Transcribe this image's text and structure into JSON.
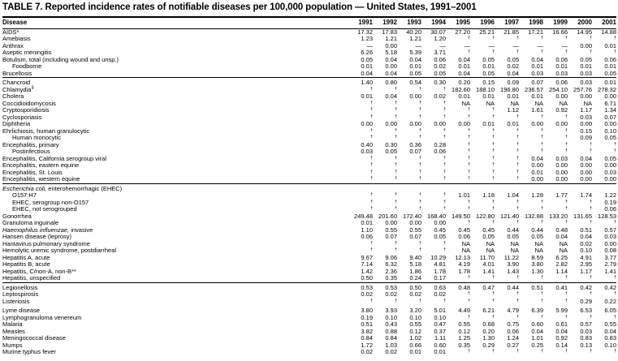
{
  "title": "TABLE 7. Reported incidence rates of notifiable diseases per 100,000 population — United States, 1991–2001",
  "columns": [
    "Disease",
    "1991",
    "1992",
    "1993",
    "1994",
    "1995",
    "1996",
    "1997",
    "1998",
    "1999",
    "2000",
    "2001"
  ],
  "sections": [
    {
      "rows": [
        {
          "name": "AIDS*",
          "values": [
            "17.32",
            "17.83",
            "40.20",
            "30.07",
            "27.20",
            "25.21",
            "21.85",
            "17.21",
            "16.66",
            "14.95",
            "14.88"
          ]
        },
        {
          "name": "Amebiasis",
          "values": [
            "1.23",
            "1.21",
            "1.21",
            "1.20",
            "†",
            "†",
            "†",
            "†",
            "†",
            "†",
            "†"
          ]
        },
        {
          "name": "Anthrax",
          "values": [
            "—",
            "0.00",
            "—",
            "—",
            "—",
            "—",
            "—",
            "—",
            "—",
            "0.00",
            "0.01"
          ]
        },
        {
          "name": "Aseptic meningitis",
          "values": [
            "6.26",
            "5.18",
            "5.39",
            "3.71",
            "†",
            "†",
            "†",
            "†",
            "†",
            "†",
            "†"
          ]
        },
        {
          "name": "Botulism, total (including wound and unsp.)",
          "values": [
            "0.05",
            "0.04",
            "0.04",
            "0.06",
            "0.04",
            "0.05",
            "0.05",
            "0.04",
            "0.06",
            "0.05",
            "0.06"
          ]
        },
        {
          "name": "Foodborne",
          "indent": true,
          "values": [
            "0.01",
            "0.00",
            "0.01",
            "0.02",
            "0.01",
            "0.01",
            "0.02",
            "0.01",
            "0.01",
            "0.01",
            "0.01"
          ]
        },
        {
          "name": "Brucellosis",
          "values": [
            "0.04",
            "0.04",
            "0.05",
            "0.05",
            "0.04",
            "0.05",
            "0.04",
            "0.03",
            "0.03",
            "0.03",
            "0.05"
          ]
        }
      ]
    },
    {
      "rows": [
        {
          "name": "Chancroid",
          "values": [
            "1.40",
            "0.80",
            "0.54",
            "0.30",
            "0.20",
            "0.15",
            "0.09",
            "0.07",
            "0.06",
            "0.03",
            "0.01"
          ]
        },
        {
          "name": "Chlamydia",
          "name_sup": "§",
          "values": [
            "†",
            "†",
            "†",
            "†",
            "182.60",
            "188.10",
            "196.80",
            "236.57",
            "254.10",
            "257.76",
            "278.32"
          ]
        },
        {
          "name": "Cholera",
          "values": [
            "0.01",
            "0.04",
            "0.00",
            "0.02",
            "0.01",
            "0.01",
            "0.01",
            "0.01",
            "0.00",
            "0.00",
            "0.00"
          ]
        },
        {
          "name": "Coccidioidomycosis",
          "values": [
            "†",
            "†",
            "†",
            "†",
            "NA",
            "NA",
            "NA",
            "NA",
            "NA",
            "NA",
            "6.71"
          ]
        },
        {
          "name": "Cryptosporidiosis",
          "values": [
            "†",
            "†",
            "†",
            "†",
            "†",
            "†",
            "1.12",
            "1.61",
            "0.92",
            "1.17",
            "1.34"
          ]
        },
        {
          "name": "Cyclosporiasis",
          "values": [
            "†",
            "†",
            "†",
            "†",
            "†",
            "†",
            "†",
            "†",
            "†",
            "0.03",
            "0.07"
          ]
        },
        {
          "name": "Diphtheria",
          "values": [
            "0.00",
            "0.00",
            "0.00",
            "0.00",
            "0.00",
            "0.01",
            "0.01",
            "0.00",
            "0.00",
            "0.00",
            "0.00"
          ]
        },
        {
          "name": "Ehrlichiosis, human granulocytic",
          "values": [
            "†",
            "†",
            "†",
            "†",
            "†",
            "†",
            "†",
            "†",
            "†",
            "0.15",
            "0.10"
          ]
        },
        {
          "name": "Human monocytic",
          "indent": true,
          "values": [
            "†",
            "†",
            "†",
            "†",
            "†",
            "†",
            "†",
            "†",
            "†",
            "0.09",
            "0.05"
          ]
        },
        {
          "name": "Encephalitis, primary",
          "values": [
            "0.40",
            "0.30",
            "0.36",
            "0.28",
            "†",
            "†",
            "†",
            "†",
            "†",
            "†",
            "†"
          ]
        },
        {
          "name": "Postinfectious",
          "indent": true,
          "values": [
            "0.03",
            "0.05",
            "0.07",
            "0.06",
            "†",
            "†",
            "†",
            "†",
            "†",
            "†",
            "†"
          ]
        },
        {
          "name": "Encephalitis, California serogroup viral",
          "values": [
            "†",
            "†",
            "†",
            "†",
            "†",
            "†",
            "†",
            "0.04",
            "0.03",
            "0.04",
            "0.05"
          ]
        },
        {
          "name": "Encephalitis, eastern equine",
          "values": [
            "†",
            "†",
            "†",
            "†",
            "†",
            "†",
            "†",
            "0.00",
            "0.00",
            "0.00",
            "0.00"
          ]
        },
        {
          "name": "Encephalitis, St. Louis",
          "values": [
            "†",
            "†",
            "†",
            "†",
            "†",
            "†",
            "†",
            "0.01",
            "0.00",
            "0.00",
            "0.03"
          ]
        },
        {
          "name": "Encephalitis, western equine",
          "values": [
            "†",
            "†",
            "†",
            "†",
            "†",
            "†",
            "†",
            "0.00",
            "0.00",
            "0.00",
            "0.00"
          ]
        }
      ]
    },
    {
      "rows": [
        {
          "name_italic": "Escherichia coli,",
          "name": " enterohemorrhagic (EHEC)",
          "values": [
            "",
            "",
            "",
            "",
            "",
            "",
            "",
            "",
            "",
            "",
            ""
          ]
        },
        {
          "name": "O157:H7",
          "indent": true,
          "values": [
            "†",
            "†",
            "†",
            "†",
            "1.01",
            "1.18",
            "1.04",
            "1.28",
            "1.77",
            "1.74",
            "1.22"
          ]
        },
        {
          "name": "EHEC, serogroup non-O157",
          "indent": true,
          "values": [
            "†",
            "†",
            "†",
            "†",
            "†",
            "†",
            "†",
            "†",
            "†",
            "†",
            "0.19"
          ]
        },
        {
          "name": "EHEC, not serogrouped",
          "indent": true,
          "values": [
            "†",
            "†",
            "†",
            "†",
            "†",
            "†",
            "†",
            "†",
            "†",
            "†",
            "0.06"
          ]
        },
        {
          "name": "Gonorrhea",
          "values": [
            "249.48",
            "201.60",
            "172.40",
            "168.40",
            "149.50",
            "122.80",
            "121.40",
            "132.88",
            "133.20",
            "131.65",
            "128.53"
          ]
        },
        {
          "name": "Granuloma inguinale",
          "values": [
            "0.01",
            "0.00",
            "0.00",
            "0.00",
            "†",
            "†",
            "†",
            "†",
            "†",
            "†",
            "†"
          ]
        },
        {
          "name_italic": "Haemophilus influenzae,",
          "name": " invasive",
          "values": [
            "1.10",
            "0.55",
            "0.55",
            "0.45",
            "0.45",
            "0.45",
            "0.44",
            "0.44",
            "0.48",
            "0.51",
            "0.57"
          ]
        },
        {
          "name": "Hansen disease (leprosy)",
          "values": [
            "0.06",
            "0.07",
            "0.07",
            "0.05",
            "0.06",
            "0.05",
            "0.05",
            "0.05",
            "0.04",
            "0.04",
            "0.03"
          ]
        },
        {
          "name": "Hantavirus pulmonary syndrome",
          "values": [
            "†",
            "†",
            "†",
            "†",
            "NA",
            "NA",
            "NA",
            "NA",
            "NA",
            "0.02",
            "0.00"
          ]
        },
        {
          "name": "Hemolytic uremic syndrome, postdiarrheal",
          "values": [
            "†",
            "†",
            "†",
            "†",
            "NA",
            "NA",
            "NA",
            "NA",
            "NA",
            "0.10",
            "0.08"
          ]
        },
        {
          "name": "Hepatitis A, acute",
          "values": [
            "9.67",
            "9.06",
            "9.40",
            "10.29",
            "12.13",
            "11.70",
            "11.22",
            "8.59",
            "6.25",
            "4.91",
            "3.77"
          ]
        },
        {
          "name": "Hepatitis B, acute",
          "values": [
            "7.14",
            "6.32",
            "5.18",
            "4.81",
            "4.19",
            "4.01",
            "3.90",
            "3.80",
            "2.82",
            "2.95",
            "2.79"
          ]
        },
        {
          "name": "Hepatitis, C/non-A, non-B**",
          "values": [
            "1.42",
            "2.36",
            "1.86",
            "1.78",
            "1.78",
            "1.41",
            "1.43",
            "1.30",
            "1.14",
            "1.17",
            "1.41"
          ]
        },
        {
          "name": "Hepatitis, unspecified",
          "values": [
            "0.50",
            "0.35",
            "0.24",
            "0.17",
            "†",
            "†",
            "†",
            "†",
            "†",
            "†",
            "†"
          ]
        }
      ]
    },
    {
      "rows": [
        {
          "name": "Legionellosis",
          "values": [
            "0.53",
            "0.53",
            "0.50",
            "0.63",
            "0.48",
            "0.47",
            "0.44",
            "0.51",
            "0.41",
            "0.42",
            "0.42"
          ]
        },
        {
          "name": "Leptospirosis",
          "values": [
            "0.02",
            "0.02",
            "0.02",
            "0.02",
            "†",
            "†",
            "†",
            "†",
            "†",
            "†",
            "†"
          ]
        },
        {
          "name": "Listeriosis",
          "values": [
            "†",
            "†",
            "†",
            "†",
            "†",
            "†",
            "†",
            "†",
            "†",
            "0.29",
            "0.22"
          ]
        },
        {
          "name": "Lyme disease",
          "gap_before": true,
          "values": [
            "3.80",
            "3.93",
            "3.20",
            "5.01",
            "4.49",
            "6.21",
            "4.79",
            "6.39",
            "5.99",
            "6.53",
            "6.05"
          ]
        },
        {
          "name": "Lymphogranuloma venereum",
          "values": [
            "0.19",
            "0.10",
            "0.10",
            "0.10",
            "†",
            "†",
            "†",
            "†",
            "†",
            "†",
            "†"
          ]
        },
        {
          "name": "Malaria",
          "values": [
            "0.51",
            "0.43",
            "0.55",
            "0.47",
            "0.55",
            "0.68",
            "0.75",
            "0.60",
            "0.61",
            "0.57",
            "0.55"
          ]
        },
        {
          "name": "Measles",
          "values": [
            "3.82",
            "0.88",
            "0.12",
            "0.37",
            "0.12",
            "0.20",
            "0.06",
            "0.04",
            "0.04",
            "0.03",
            "0.04"
          ]
        },
        {
          "name": "Meningococcal disease",
          "values": [
            "0.84",
            "0.84",
            "1.02",
            "1.11",
            "1.25",
            "1.30",
            "1.24",
            "1.01",
            "0.92",
            "0.83",
            "0.83"
          ]
        },
        {
          "name": "Mumps",
          "values": [
            "1.72",
            "1.03",
            "0.66",
            "0.60",
            "0.35",
            "0.29",
            "0.27",
            "0.25",
            "0.14",
            "0.13",
            "0.10"
          ]
        },
        {
          "name": "Murine typhus fever",
          "values": [
            "0.02",
            "0.02",
            "0.01",
            "0.01",
            "†",
            "†",
            "†",
            "†",
            "†",
            "†",
            "†"
          ]
        }
      ]
    }
  ]
}
